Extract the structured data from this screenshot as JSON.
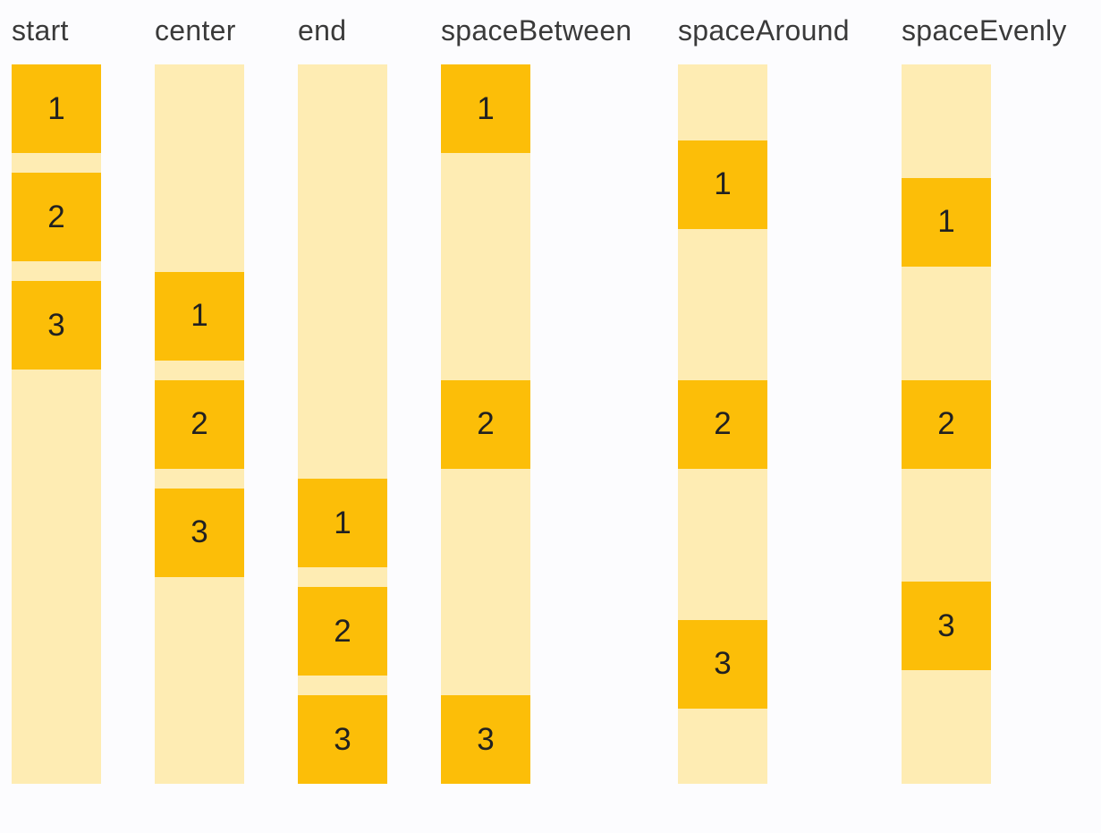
{
  "figure": {
    "description": "main-axis alignment examples",
    "colors": {
      "background": "#FCFCFE",
      "container_fill": "#FEECB3",
      "box_fill": "#FCBE08",
      "header_text": "#3A3A3A",
      "box_number_text": "#212121"
    },
    "columns": [
      {
        "label": "start",
        "mode": "start",
        "items": [
          "1",
          "2",
          "3"
        ]
      },
      {
        "label": "center",
        "mode": "center",
        "items": [
          "1",
          "2",
          "3"
        ]
      },
      {
        "label": "end",
        "mode": "end",
        "items": [
          "1",
          "2",
          "3"
        ]
      },
      {
        "label": "spaceBetween",
        "mode": "spaceBetween",
        "items": [
          "1",
          "2",
          "3"
        ]
      },
      {
        "label": "spaceAround",
        "mode": "spaceAround",
        "items": [
          "1",
          "2",
          "3"
        ]
      },
      {
        "label": "spaceEvenly",
        "mode": "spaceEvenly",
        "items": [
          "1",
          "2",
          "3"
        ]
      }
    ]
  }
}
